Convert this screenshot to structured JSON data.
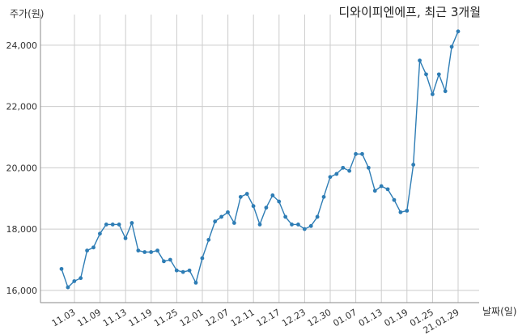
{
  "chart_data": {
    "type": "line",
    "title": "디와이피엔에프, 최근 3개월",
    "ylabel": "주가(원)",
    "xlabel": "날짜(일)",
    "ylim": [
      15600,
      25000
    ],
    "yticks": [
      16000,
      18000,
      20000,
      22000,
      24000
    ],
    "ytick_labels": [
      "16,000",
      "18,000",
      "20,000",
      "22,000",
      "24,000"
    ],
    "xtick_labels": [
      "11.03",
      "11.09",
      "11.13",
      "11.19",
      "11.25",
      "12.01",
      "12.07",
      "12.11",
      "12.17",
      "12.23",
      "12.30",
      "01.07",
      "01.13",
      "01.19",
      "01.25",
      "21.01.29"
    ],
    "grid": true,
    "line_color": "#2e7db5",
    "x": [
      "20.10.30",
      "11.02",
      "11.03",
      "11.04",
      "11.05",
      "11.06",
      "11.09",
      "11.10",
      "11.11",
      "11.12",
      "11.13",
      "11.16",
      "11.17",
      "11.18",
      "11.19",
      "11.20",
      "11.23",
      "11.24",
      "11.25",
      "11.26",
      "11.27",
      "11.30",
      "12.01",
      "12.02",
      "12.03",
      "12.04",
      "12.07",
      "12.08",
      "12.09",
      "12.10",
      "12.11",
      "12.14",
      "12.15",
      "12.16",
      "12.17",
      "12.18",
      "12.21",
      "12.22",
      "12.23",
      "12.24",
      "12.28",
      "12.29",
      "12.30",
      "01.04",
      "01.05",
      "01.06",
      "01.07",
      "01.08",
      "01.11",
      "01.12",
      "01.13",
      "01.14",
      "01.15",
      "01.18",
      "01.19",
      "01.20",
      "01.21",
      "01.22",
      "01.25",
      "01.26",
      "01.27",
      "01.28",
      "21.01.29"
    ],
    "values": [
      16700,
      16100,
      16300,
      16400,
      17300,
      17400,
      17850,
      18150,
      18150,
      18150,
      17700,
      18200,
      17300,
      17250,
      17250,
      17300,
      16950,
      17000,
      16650,
      16600,
      16650,
      16250,
      17050,
      17650,
      18250,
      18400,
      18550,
      18200,
      19050,
      19150,
      18750,
      18150,
      18700,
      19100,
      18900,
      18400,
      18150,
      18150,
      18000,
      18100,
      18400,
      19050,
      19700,
      19800,
      20000,
      19900,
      20450,
      20450,
      20000,
      19250,
      19400,
      19300,
      18950,
      18550,
      18600,
      20100,
      23500,
      23050,
      22400,
      23050,
      22500,
      23950,
      24450
    ]
  }
}
